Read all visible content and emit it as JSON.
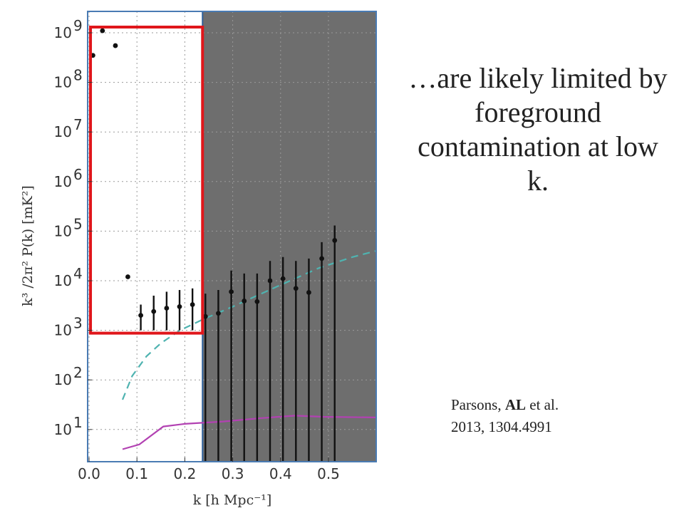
{
  "slide": {
    "headline": "…are likely limited by foreground contamination at low k.",
    "citation": {
      "line1_pre": "Parsons, ",
      "line1_bold": "AL",
      "line1_post": " et al.",
      "line2": "2013, 1304.4991"
    }
  },
  "colors": {
    "points": "#111111",
    "shaded_region": "#6e6e6e",
    "dashed_curve": "#4fb3b0",
    "purple_curve": "#b241b2",
    "highlight_box": "#e0161b",
    "frame": "#4a7bb3"
  },
  "chart_data": {
    "type": "scatter",
    "xlabel": "k [h Mpc⁻¹]",
    "ylabel": "k³ /2π² P(k) [mK²]",
    "xlim": [
      0.0,
      0.6
    ],
    "ylim": [
      1,
      2000000000
    ],
    "y_scale": "log",
    "grid": true,
    "x_ticks": [
      {
        "value": 0.0,
        "label": "0.0"
      },
      {
        "value": 0.1,
        "label": "0.1"
      },
      {
        "value": 0.2,
        "label": "0.2"
      },
      {
        "value": 0.3,
        "label": "0.3"
      },
      {
        "value": 0.4,
        "label": "0.4"
      },
      {
        "value": 0.5,
        "label": "0.5"
      }
    ],
    "y_ticks": [
      {
        "value": 1000000000,
        "base": "10",
        "exp": "9"
      },
      {
        "value": 100000000,
        "base": "10",
        "exp": "8"
      },
      {
        "value": 10000000,
        "base": "10",
        "exp": "7"
      },
      {
        "value": 1000000,
        "base": "10",
        "exp": "6"
      },
      {
        "value": 100000,
        "base": "10",
        "exp": "5"
      },
      {
        "value": 10000,
        "base": "10",
        "exp": "4"
      },
      {
        "value": 1000,
        "base": "10",
        "exp": "3"
      },
      {
        "value": 100,
        "base": "10",
        "exp": "2"
      },
      {
        "value": 10,
        "base": "10",
        "exp": "1"
      }
    ],
    "shaded_region_x": [
      0.237,
      0.6
    ],
    "highlight_box": {
      "x": [
        0.003,
        0.237
      ],
      "y": [
        1000,
        1000000000
      ]
    },
    "points": [
      {
        "x": 0.008,
        "y": 350000000,
        "err_low": null,
        "err_high": null
      },
      {
        "x": 0.028,
        "y": 1100000000,
        "err_low": null,
        "err_high": null
      },
      {
        "x": 0.055,
        "y": 550000000,
        "err_low": null,
        "err_high": null
      },
      {
        "x": 0.081,
        "y": 12000,
        "err_low": null,
        "err_high": null
      },
      {
        "x": 0.108,
        "y": 2000,
        "err_low": 1000,
        "err_high": 3300
      },
      {
        "x": 0.135,
        "y": 2400,
        "err_low": 1000,
        "err_high": 5000
      },
      {
        "x": 0.162,
        "y": 2800,
        "err_low": 1000,
        "err_high": 6000
      },
      {
        "x": 0.189,
        "y": 3000,
        "err_low": 1000,
        "err_high": 6500
      },
      {
        "x": 0.216,
        "y": 3300,
        "err_low": 1000,
        "err_high": 7000
      },
      {
        "x": 0.243,
        "y": 1900,
        "err_low": 1,
        "err_high": 5500
      },
      {
        "x": 0.27,
        "y": 2200,
        "err_low": 1,
        "err_high": 6500
      },
      {
        "x": 0.297,
        "y": 6000,
        "err_low": 1,
        "err_high": 16000
      },
      {
        "x": 0.324,
        "y": 3900,
        "err_low": 1,
        "err_high": 14000
      },
      {
        "x": 0.351,
        "y": 3800,
        "err_low": 1,
        "err_high": 14000
      },
      {
        "x": 0.378,
        "y": 10000,
        "err_low": 1,
        "err_high": 25000
      },
      {
        "x": 0.405,
        "y": 11000,
        "err_low": 1,
        "err_high": 30000
      },
      {
        "x": 0.432,
        "y": 7000,
        "err_low": 1,
        "err_high": 25000
      },
      {
        "x": 0.459,
        "y": 5800,
        "err_low": 1,
        "err_high": 28000
      },
      {
        "x": 0.486,
        "y": 28000,
        "err_low": 1,
        "err_high": 60000
      },
      {
        "x": 0.513,
        "y": 65000,
        "err_low": 1,
        "err_high": 130000
      }
    ],
    "curves": [
      {
        "style": "dashed",
        "points": [
          [
            0.07,
            40
          ],
          [
            0.09,
            120
          ],
          [
            0.12,
            300
          ],
          [
            0.15,
            550
          ],
          [
            0.19,
            1000
          ],
          [
            0.24,
            1700
          ],
          [
            0.3,
            3000
          ],
          [
            0.36,
            5500
          ],
          [
            0.42,
            10000
          ],
          [
            0.48,
            18000
          ],
          [
            0.55,
            30000
          ],
          [
            0.6,
            40000
          ]
        ]
      },
      {
        "style": "solid",
        "points": [
          [
            0.07,
            4
          ],
          [
            0.105,
            5
          ],
          [
            0.155,
            11.5
          ],
          [
            0.2,
            13
          ],
          [
            0.28,
            14.5
          ],
          [
            0.36,
            17
          ],
          [
            0.43,
            19
          ],
          [
            0.49,
            18
          ],
          [
            0.6,
            17.5
          ]
        ]
      }
    ]
  }
}
